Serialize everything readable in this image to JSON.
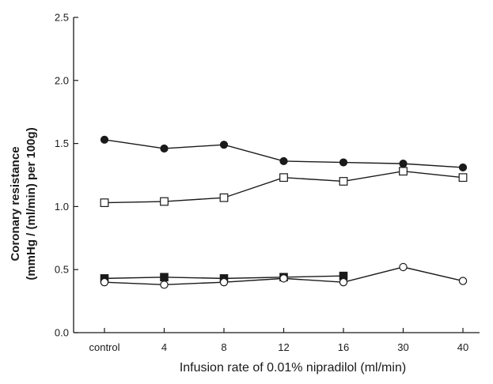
{
  "chart_data": {
    "type": "line",
    "title": "",
    "xlabel": "Infusion rate of 0.01% nipradilol (ml/min)",
    "ylabel_line1": "Coronary resistance",
    "ylabel_line2": "(mmHg / (ml/min) per 100g)",
    "categories": [
      "control",
      "4",
      "8",
      "12",
      "16",
      "30",
      "40"
    ],
    "ylim": [
      0,
      2.5
    ],
    "yticks": [
      "0.0",
      "0.5",
      "1.0",
      "1.5",
      "2.0",
      "2.5"
    ],
    "grid": false,
    "legend": "none",
    "series": [
      {
        "marker": "filled-circle",
        "color": "#1a1a1a",
        "values": [
          1.53,
          1.46,
          1.49,
          1.36,
          1.35,
          1.34,
          1.31
        ]
      },
      {
        "marker": "open-square",
        "color": "#1a1a1a",
        "values": [
          1.03,
          1.04,
          1.07,
          1.23,
          1.2,
          1.28,
          1.23
        ]
      },
      {
        "marker": "filled-square",
        "color": "#1a1a1a",
        "values": [
          0.43,
          0.44,
          0.43,
          0.44,
          0.45,
          null,
          null
        ]
      },
      {
        "marker": "open-circle",
        "color": "#1a1a1a",
        "values": [
          0.4,
          0.38,
          0.4,
          0.43,
          0.4,
          0.52,
          0.41
        ]
      }
    ]
  }
}
